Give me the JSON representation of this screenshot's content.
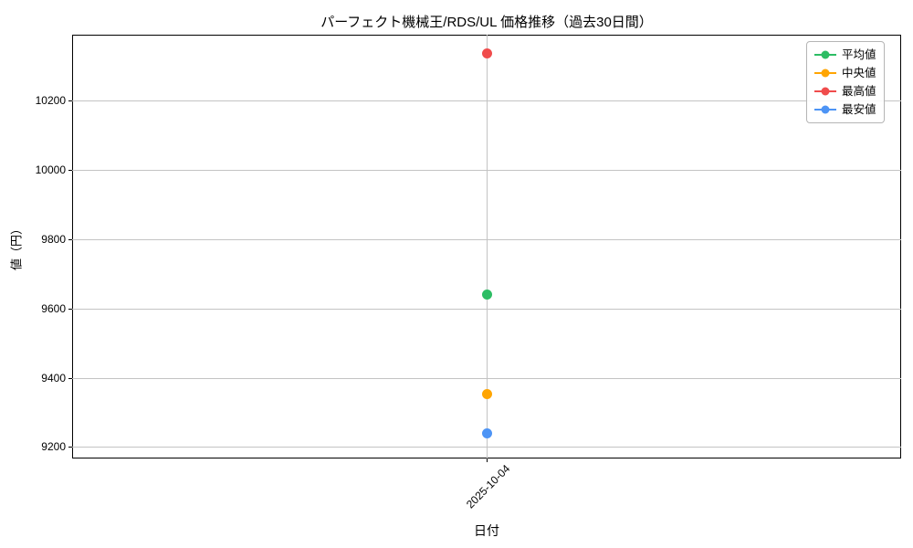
{
  "chart_data": {
    "type": "line",
    "title": "パーフェクト機械王/RDS/UL 価格推移（過去30日間）",
    "xlabel": "日付",
    "ylabel": "値（円）",
    "x": [
      "2025-10-04"
    ],
    "series": [
      {
        "name": "平均値",
        "color": "#2dbd64",
        "values": [
          9640
        ]
      },
      {
        "name": "中央値",
        "color": "#ffa502",
        "values": [
          9353
        ]
      },
      {
        "name": "最高値",
        "color": "#f04c4c",
        "values": [
          10334
        ]
      },
      {
        "name": "最安値",
        "color": "#4d94f5",
        "values": [
          9240
        ]
      }
    ],
    "y_ticks": [
      9200,
      9400,
      9600,
      9800,
      10000,
      10200
    ],
    "ylim": [
      9167,
      10389
    ],
    "grid": true,
    "legend_position": "upper right",
    "axis_color": "#000000",
    "grid_color": "#c3c3c3"
  }
}
